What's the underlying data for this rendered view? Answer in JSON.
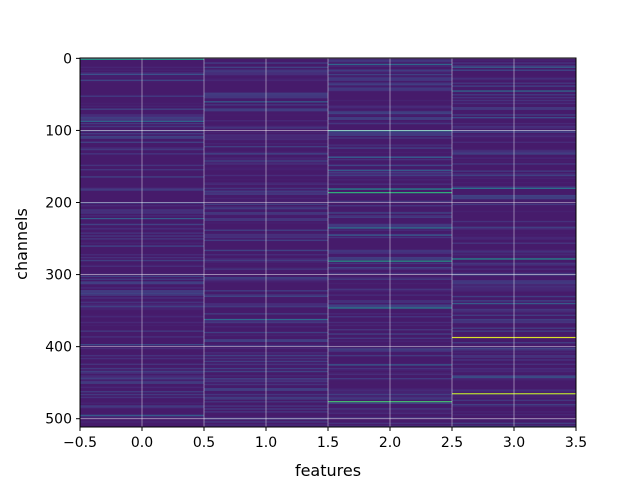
{
  "chart_data": {
    "type": "heatmap",
    "title": "",
    "xlabel": "features",
    "ylabel": "channels",
    "xlim": [
      -0.5,
      3.5
    ],
    "ylim": [
      511.5,
      -0.5
    ],
    "x_ticks": [
      "−0.5",
      "0.0",
      "0.5",
      "1.0",
      "1.5",
      "2.0",
      "2.5",
      "3.0",
      "3.5"
    ],
    "x_tick_values": [
      -0.5,
      0.0,
      0.5,
      1.0,
      1.5,
      2.0,
      2.5,
      3.0,
      3.5
    ],
    "y_ticks": [
      "0",
      "100",
      "200",
      "300",
      "400",
      "500"
    ],
    "y_tick_values": [
      0,
      100,
      200,
      300,
      400,
      500
    ],
    "grid": true,
    "colormap": "viridis",
    "n_features": 4,
    "n_channels": 512,
    "background_level": 0.08,
    "bright_bands": [
      {
        "feature": 0,
        "channel": 1,
        "level": 0.55
      },
      {
        "feature": 0,
        "channel": 22,
        "level": 0.25
      },
      {
        "feature": 0,
        "channel": 87,
        "level": 0.35
      },
      {
        "feature": 0,
        "channel": 222,
        "level": 0.3
      },
      {
        "feature": 0,
        "channel": 397,
        "level": 0.25
      },
      {
        "feature": 0,
        "channel": 495,
        "level": 0.3
      },
      {
        "feature": 1,
        "channel": 60,
        "level": 0.3
      },
      {
        "feature": 1,
        "channel": 330,
        "level": 0.2
      },
      {
        "feature": 1,
        "channel": 362,
        "level": 0.35
      },
      {
        "feature": 1,
        "channel": 500,
        "level": 0.2
      },
      {
        "feature": 2,
        "channel": 8,
        "level": 0.35
      },
      {
        "feature": 2,
        "channel": 100,
        "level": 0.55
      },
      {
        "feature": 2,
        "channel": 137,
        "level": 0.3
      },
      {
        "feature": 2,
        "channel": 155,
        "level": 0.3
      },
      {
        "feature": 2,
        "channel": 181,
        "level": 0.5
      },
      {
        "feature": 2,
        "channel": 186,
        "level": 0.65
      },
      {
        "feature": 2,
        "channel": 235,
        "level": 0.4
      },
      {
        "feature": 2,
        "channel": 245,
        "level": 0.3
      },
      {
        "feature": 2,
        "channel": 281,
        "level": 0.55
      },
      {
        "feature": 2,
        "channel": 346,
        "level": 0.45
      },
      {
        "feature": 2,
        "channel": 425,
        "level": 0.3
      },
      {
        "feature": 2,
        "channel": 476,
        "level": 0.7
      },
      {
        "feature": 3,
        "channel": 12,
        "level": 0.3
      },
      {
        "feature": 3,
        "channel": 45,
        "level": 0.35
      },
      {
        "feature": 3,
        "channel": 82,
        "level": 0.25
      },
      {
        "feature": 3,
        "channel": 180,
        "level": 0.4
      },
      {
        "feature": 3,
        "channel": 278,
        "level": 0.5
      },
      {
        "feature": 3,
        "channel": 340,
        "level": 0.3
      },
      {
        "feature": 3,
        "channel": 387,
        "level": 0.95
      },
      {
        "feature": 3,
        "channel": 442,
        "level": 0.3
      },
      {
        "feature": 3,
        "channel": 465,
        "level": 0.9
      }
    ]
  }
}
